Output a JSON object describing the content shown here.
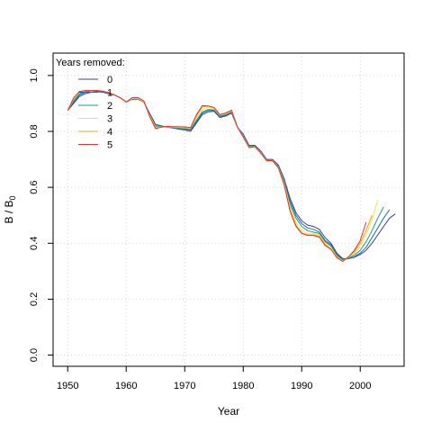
{
  "chart_data": {
    "type": "line",
    "xlabel": "Year",
    "ylabel_main": "B / B",
    "ylabel_sub": "0",
    "xlim": [
      1947.5,
      2007.5
    ],
    "ylim": [
      -0.04,
      1.08
    ],
    "xticks": [
      1950,
      1960,
      1970,
      1980,
      1990,
      2000
    ],
    "xtick_labels": [
      "1950",
      "1960",
      "1970",
      "1980",
      "1990",
      "2000"
    ],
    "yticks": [
      0.0,
      0.2,
      0.4,
      0.6,
      0.8,
      1.0
    ],
    "ytick_labels": [
      "0.0",
      "0.2",
      "0.4",
      "0.6",
      "0.8",
      "1.0"
    ],
    "grid": true,
    "legend": {
      "title": "Years removed:",
      "position": "top-left",
      "entries": [
        "0",
        "1",
        "2",
        "3",
        "4",
        "5"
      ]
    },
    "series": [
      {
        "name": "0",
        "color": "#3b3b9e",
        "x": [
          1950,
          1951,
          1952,
          1953,
          1954,
          1955,
          1956,
          1957,
          1958,
          1959,
          1960,
          1961,
          1962,
          1963,
          1964,
          1965,
          1966,
          1967,
          1968,
          1969,
          1970,
          1971,
          1972,
          1973,
          1974,
          1975,
          1976,
          1977,
          1978,
          1979,
          1980,
          1981,
          1982,
          1983,
          1984,
          1985,
          1986,
          1987,
          1988,
          1989,
          1990,
          1991,
          1992,
          1993,
          1994,
          1995,
          1996,
          1997,
          1998,
          1999,
          2000,
          2001,
          2002,
          2003,
          2004,
          2005,
          2006
        ],
        "y": [
          0.875,
          0.9,
          0.925,
          0.935,
          0.94,
          0.942,
          0.94,
          0.935,
          0.93,
          0.92,
          0.905,
          0.915,
          0.915,
          0.905,
          0.865,
          0.825,
          0.82,
          0.815,
          0.812,
          0.808,
          0.805,
          0.8,
          0.83,
          0.86,
          0.87,
          0.872,
          0.85,
          0.855,
          0.865,
          0.815,
          0.79,
          0.75,
          0.75,
          0.73,
          0.7,
          0.7,
          0.68,
          0.63,
          0.56,
          0.51,
          0.48,
          0.465,
          0.46,
          0.45,
          0.42,
          0.4,
          0.365,
          0.345,
          0.345,
          0.35,
          0.36,
          0.375,
          0.4,
          0.43,
          0.46,
          0.49,
          0.505
        ]
      },
      {
        "name": "1",
        "color": "#2166ac",
        "x": [
          1950,
          1951,
          1952,
          1953,
          1954,
          1955,
          1956,
          1957,
          1958,
          1959,
          1960,
          1961,
          1962,
          1963,
          1964,
          1965,
          1966,
          1967,
          1968,
          1969,
          1970,
          1971,
          1972,
          1973,
          1974,
          1975,
          1976,
          1977,
          1978,
          1979,
          1980,
          1981,
          1982,
          1983,
          1984,
          1985,
          1986,
          1987,
          1988,
          1989,
          1990,
          1991,
          1992,
          1993,
          1994,
          1995,
          1996,
          1997,
          1998,
          1999,
          2000,
          2001,
          2002,
          2003,
          2004,
          2005
        ],
        "y": [
          0.875,
          0.905,
          0.93,
          0.94,
          0.945,
          0.945,
          0.942,
          0.937,
          0.93,
          0.92,
          0.905,
          0.915,
          0.915,
          0.905,
          0.862,
          0.82,
          0.818,
          0.815,
          0.812,
          0.81,
          0.808,
          0.805,
          0.835,
          0.865,
          0.875,
          0.875,
          0.852,
          0.858,
          0.868,
          0.815,
          0.788,
          0.748,
          0.748,
          0.728,
          0.698,
          0.698,
          0.678,
          0.625,
          0.55,
          0.5,
          0.47,
          0.455,
          0.45,
          0.44,
          0.41,
          0.395,
          0.36,
          0.342,
          0.345,
          0.352,
          0.365,
          0.385,
          0.42,
          0.455,
          0.49,
          0.52
        ]
      },
      {
        "name": "2",
        "color": "#1a9a8a",
        "x": [
          1950,
          1951,
          1952,
          1953,
          1954,
          1955,
          1956,
          1957,
          1958,
          1959,
          1960,
          1961,
          1962,
          1963,
          1964,
          1965,
          1966,
          1967,
          1968,
          1969,
          1970,
          1971,
          1972,
          1973,
          1974,
          1975,
          1976,
          1977,
          1978,
          1979,
          1980,
          1981,
          1982,
          1983,
          1984,
          1985,
          1986,
          1987,
          1988,
          1989,
          1990,
          1991,
          1992,
          1993,
          1994,
          1995,
          1996,
          1997,
          1998,
          1999,
          2000,
          2001,
          2002,
          2003,
          2004
        ],
        "y": [
          0.875,
          0.91,
          0.935,
          0.942,
          0.945,
          0.945,
          0.943,
          0.938,
          0.93,
          0.92,
          0.905,
          0.915,
          0.915,
          0.905,
          0.86,
          0.818,
          0.817,
          0.815,
          0.813,
          0.812,
          0.81,
          0.808,
          0.84,
          0.87,
          0.878,
          0.877,
          0.855,
          0.86,
          0.87,
          0.815,
          0.785,
          0.746,
          0.747,
          0.726,
          0.697,
          0.697,
          0.675,
          0.62,
          0.54,
          0.49,
          0.46,
          0.445,
          0.44,
          0.435,
          0.405,
          0.39,
          0.355,
          0.34,
          0.347,
          0.358,
          0.375,
          0.405,
          0.445,
          0.49,
          0.53
        ]
      },
      {
        "name": "3",
        "color": "#e8e84a",
        "x": [
          1950,
          1951,
          1952,
          1953,
          1954,
          1955,
          1956,
          1957,
          1958,
          1959,
          1960,
          1961,
          1962,
          1963,
          1964,
          1965,
          1966,
          1967,
          1968,
          1969,
          1970,
          1971,
          1972,
          1973,
          1974,
          1975,
          1976,
          1977,
          1978,
          1979,
          1980,
          1981,
          1982,
          1983,
          1984,
          1985,
          1986,
          1987,
          1988,
          1989,
          1990,
          1991,
          1992,
          1993,
          1994,
          1995,
          1996,
          1997,
          1998,
          1999,
          2000,
          2001,
          2002,
          2003
        ],
        "y": [
          0.875,
          0.915,
          0.94,
          0.945,
          0.946,
          0.946,
          0.944,
          0.939,
          0.93,
          0.92,
          0.905,
          0.917,
          0.917,
          0.906,
          0.858,
          0.815,
          0.816,
          0.816,
          0.815,
          0.814,
          0.813,
          0.812,
          0.848,
          0.878,
          0.885,
          0.882,
          0.858,
          0.863,
          0.873,
          0.815,
          0.782,
          0.744,
          0.746,
          0.724,
          0.696,
          0.696,
          0.672,
          0.615,
          0.53,
          0.475,
          0.445,
          0.435,
          0.435,
          0.43,
          0.4,
          0.385,
          0.352,
          0.338,
          0.35,
          0.365,
          0.39,
          0.43,
          0.485,
          0.555
        ]
      },
      {
        "name": "4",
        "color": "#f0a020",
        "x": [
          1950,
          1951,
          1952,
          1953,
          1954,
          1955,
          1956,
          1957,
          1958,
          1959,
          1960,
          1961,
          1962,
          1963,
          1964,
          1965,
          1966,
          1967,
          1968,
          1969,
          1970,
          1971,
          1972,
          1973,
          1974,
          1975,
          1976,
          1977,
          1978,
          1979,
          1980,
          1981,
          1982,
          1983,
          1984,
          1985,
          1986,
          1987,
          1988,
          1989,
          1990,
          1991,
          1992,
          1993,
          1994,
          1995,
          1996,
          1997,
          1998,
          1999,
          2000,
          2001,
          2002
        ],
        "y": [
          0.875,
          0.918,
          0.942,
          0.946,
          0.946,
          0.946,
          0.944,
          0.939,
          0.93,
          0.92,
          0.905,
          0.92,
          0.92,
          0.908,
          0.855,
          0.812,
          0.815,
          0.817,
          0.816,
          0.816,
          0.815,
          0.813,
          0.855,
          0.888,
          0.89,
          0.885,
          0.86,
          0.865,
          0.875,
          0.815,
          0.78,
          0.742,
          0.745,
          0.722,
          0.695,
          0.695,
          0.67,
          0.61,
          0.52,
          0.465,
          0.437,
          0.43,
          0.43,
          0.425,
          0.395,
          0.38,
          0.35,
          0.336,
          0.352,
          0.37,
          0.4,
          0.445,
          0.5
        ]
      },
      {
        "name": "5",
        "color": "#e83030",
        "x": [
          1950,
          1951,
          1952,
          1953,
          1954,
          1955,
          1956,
          1957,
          1958,
          1959,
          1960,
          1961,
          1962,
          1963,
          1964,
          1965,
          1966,
          1967,
          1968,
          1969,
          1970,
          1971,
          1972,
          1973,
          1974,
          1975,
          1976,
          1977,
          1978,
          1979,
          1980,
          1981,
          1982,
          1983,
          1984,
          1985,
          1986,
          1987,
          1988,
          1989,
          1990,
          1991,
          1992,
          1993,
          1994,
          1995,
          1996,
          1997,
          1998,
          1999,
          2000,
          2001
        ],
        "y": [
          0.875,
          0.92,
          0.943,
          0.946,
          0.946,
          0.946,
          0.944,
          0.939,
          0.93,
          0.92,
          0.905,
          0.92,
          0.921,
          0.909,
          0.853,
          0.81,
          0.815,
          0.818,
          0.817,
          0.817,
          0.816,
          0.814,
          0.86,
          0.892,
          0.891,
          0.886,
          0.86,
          0.866,
          0.876,
          0.815,
          0.78,
          0.742,
          0.745,
          0.722,
          0.695,
          0.695,
          0.67,
          0.608,
          0.515,
          0.46,
          0.435,
          0.428,
          0.428,
          0.422,
          0.392,
          0.378,
          0.348,
          0.335,
          0.352,
          0.375,
          0.41,
          0.475
        ]
      }
    ]
  }
}
